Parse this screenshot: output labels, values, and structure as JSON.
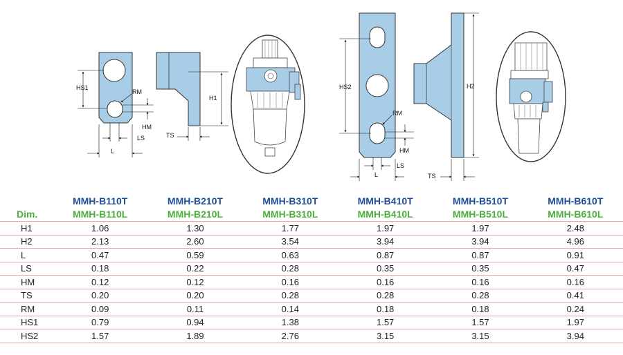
{
  "figure": {
    "labels": {
      "hs1": "HS1",
      "rm": "RM",
      "hm": "HM",
      "ls": "LS",
      "l": "L",
      "ts": "TS",
      "h1": "H1",
      "hs2": "HS2",
      "h2": "H2"
    },
    "part_color": "#a8cde6",
    "outline_color": "#333333"
  },
  "table": {
    "dim_header": "Dim.",
    "models": [
      {
        "top": "MMH-B110T",
        "bottom": "MMH-B110L"
      },
      {
        "top": "MMH-B210T",
        "bottom": "MMH-B210L"
      },
      {
        "top": "MMH-B310T",
        "bottom": "MMH-B310L"
      },
      {
        "top": "MMH-B410T",
        "bottom": "MMH-B410L"
      },
      {
        "top": "MMH-B510T",
        "bottom": "MMH-B510L"
      },
      {
        "top": "MMH-B610T",
        "bottom": "MMH-B610L"
      }
    ],
    "rows": [
      {
        "dim": "H1",
        "values": [
          "1.06",
          "1.30",
          "1.77",
          "1.97",
          "1.97",
          "2.48"
        ]
      },
      {
        "dim": "H2",
        "values": [
          "2.13",
          "2.60",
          "3.54",
          "3.94",
          "3.94",
          "4.96"
        ]
      },
      {
        "dim": "L",
        "values": [
          "0.47",
          "0.59",
          "0.63",
          "0.87",
          "0.87",
          "0.91"
        ]
      },
      {
        "dim": "LS",
        "values": [
          "0.18",
          "0.22",
          "0.28",
          "0.35",
          "0.35",
          "0.47"
        ]
      },
      {
        "dim": "HM",
        "values": [
          "0.12",
          "0.12",
          "0.16",
          "0.16",
          "0.16",
          "0.16"
        ]
      },
      {
        "dim": "TS",
        "values": [
          "0.20",
          "0.20",
          "0.28",
          "0.28",
          "0.28",
          "0.41"
        ]
      },
      {
        "dim": "RM",
        "values": [
          "0.09",
          "0.11",
          "0.14",
          "0.18",
          "0.18",
          "0.24"
        ]
      },
      {
        "dim": "HS1",
        "values": [
          "0.79",
          "0.94",
          "1.38",
          "1.57",
          "1.57",
          "1.97"
        ]
      },
      {
        "dim": "HS2",
        "values": [
          "1.57",
          "1.89",
          "2.76",
          "3.15",
          "3.15",
          "3.94"
        ]
      }
    ],
    "border_color": "#e6a99d",
    "model_top_color": "#1f4f9a",
    "model_bottom_color": "#4cae3c"
  }
}
